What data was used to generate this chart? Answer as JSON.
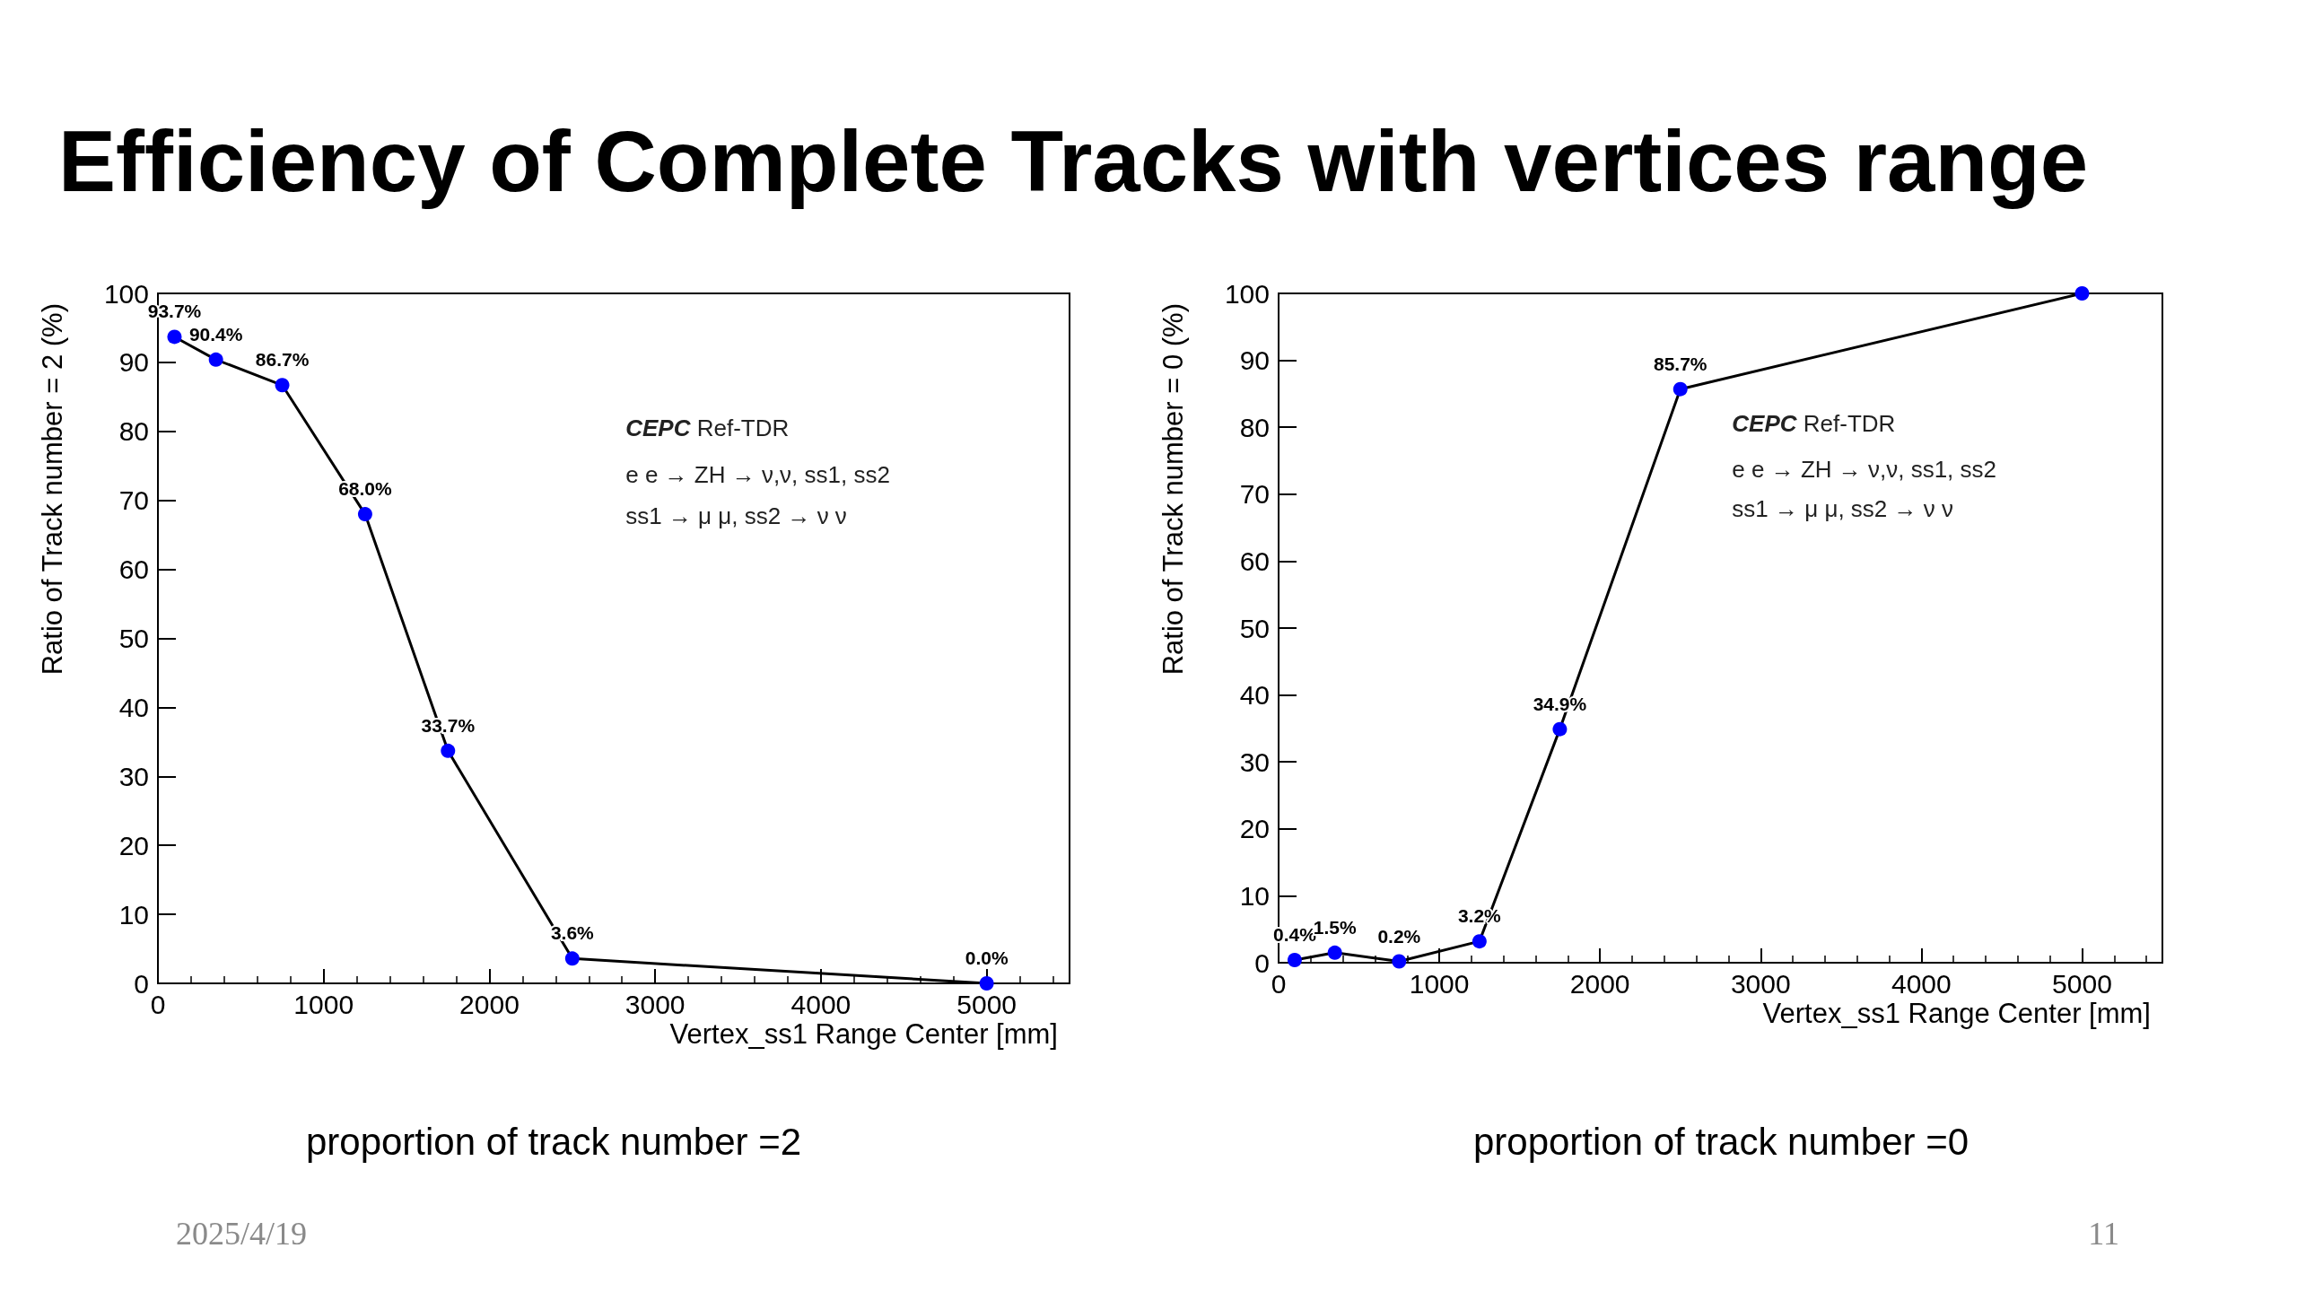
{
  "chart_data": [
    {
      "type": "line",
      "title": "Efficiency of Complete Tracks with vertices range",
      "xlabel": "Vertex_ss1 Range Center [mm]",
      "ylabel": "Ratio of Track number = 2 (%)",
      "x": [
        100,
        350,
        750,
        1250,
        1750,
        2500,
        5000
      ],
      "series": [
        {
          "color": "#0000ff",
          "values": [
            93.7,
            90.4,
            86.7,
            68.0,
            33.7,
            3.6,
            0.0
          ],
          "value_labels": [
            "93.7%",
            "90.4%",
            "86.7%",
            "68.0%",
            "33.7%",
            "3.6%",
            "0.0%"
          ]
        }
      ],
      "xlim": [
        0,
        5500
      ],
      "xticks": [
        0,
        1000,
        2000,
        3000,
        4000,
        5000
      ],
      "ylim": [
        0,
        100
      ],
      "yticks": [
        0,
        10,
        20,
        30,
        40,
        50,
        60,
        70,
        80,
        90,
        100
      ],
      "grid": false,
      "marker": "circle",
      "line_style": "solid",
      "annotations": [
        "CEPC Ref-TDR",
        "e e → ZH → ν,ν, ss1, ss2",
        "ss1 → μ μ, ss2 → ν ν",
        "proportion of track number =2",
        "2025/4/19"
      ]
    },
    {
      "type": "line",
      "xlabel": "Vertex_ss1 Range Center [mm]",
      "ylabel": "Ratio of Track number = 0 (%)",
      "x": [
        100,
        350,
        750,
        1250,
        1750,
        2500,
        5000
      ],
      "series": [
        {
          "color": "#0000ff",
          "values": [
            0.4,
            1.5,
            0.2,
            3.2,
            34.9,
            85.7,
            100
          ],
          "value_labels": [
            "0.4%",
            "1.5%",
            "0.2%",
            "3.2%",
            "34.9%",
            "85.7%",
            null
          ]
        }
      ],
      "xlim": [
        0,
        5500
      ],
      "xticks": [
        0,
        1000,
        2000,
        3000,
        4000,
        5000
      ],
      "ylim": [
        0,
        100
      ],
      "yticks": [
        0,
        10,
        20,
        30,
        40,
        50,
        60,
        70,
        80,
        90,
        100
      ],
      "grid": false,
      "marker": "circle",
      "line_style": "solid",
      "annotations": [
        "CEPC Ref-TDR",
        "e e → ZH → ν,ν, ss1, ss2",
        "ss1 → μ μ, ss2 → ν ν",
        "proportion of track number =0",
        "11"
      ]
    }
  ]
}
